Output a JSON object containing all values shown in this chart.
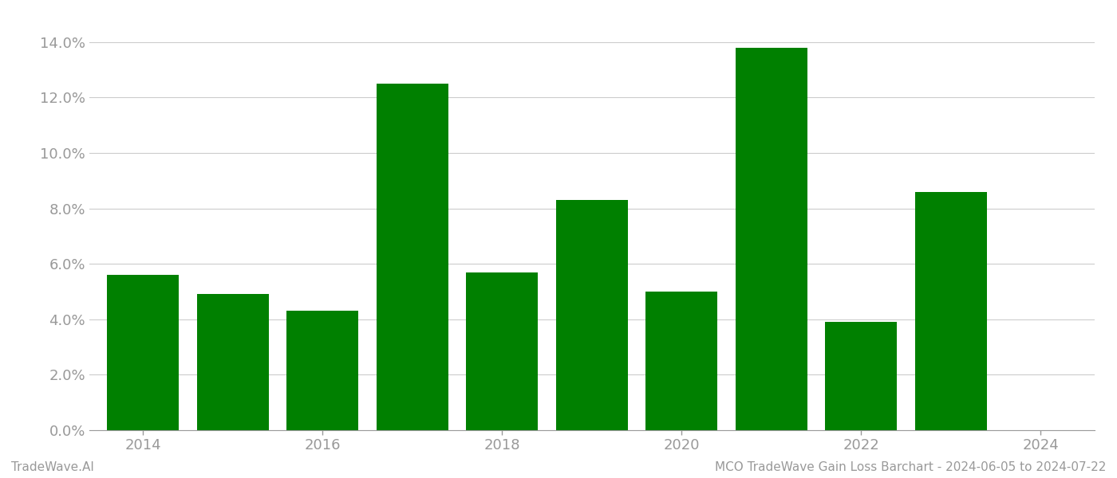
{
  "years": [
    2014,
    2015,
    2016,
    2017,
    2018,
    2019,
    2020,
    2021,
    2022,
    2023
  ],
  "values": [
    0.056,
    0.049,
    0.043,
    0.125,
    0.057,
    0.083,
    0.05,
    0.138,
    0.039,
    0.086
  ],
  "bar_color": "#008000",
  "background_color": "#ffffff",
  "grid_color": "#cccccc",
  "ylim": [
    0,
    0.15
  ],
  "yticks": [
    0.0,
    0.02,
    0.04,
    0.06,
    0.08,
    0.1,
    0.12,
    0.14
  ],
  "tick_fontsize": 13,
  "footer_left": "TradeWave.AI",
  "footer_right": "MCO TradeWave Gain Loss Barchart - 2024-06-05 to 2024-07-22",
  "footer_fontsize": 11,
  "axis_color": "#999999",
  "xtick_positions": [
    2014,
    2016,
    2018,
    2020,
    2022,
    2024
  ],
  "xtick_labels": [
    "2014",
    "2016",
    "2018",
    "2020",
    "2022",
    "2024"
  ],
  "xlim": [
    2013.4,
    2024.6
  ],
  "bar_width": 0.8
}
